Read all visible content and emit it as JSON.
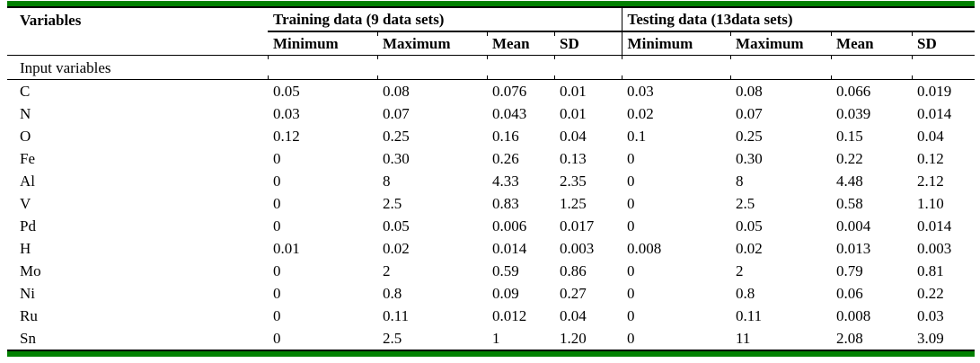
{
  "page": {
    "accent_green": "#008000",
    "rule_black": "#000000",
    "background": "#ffffff"
  },
  "table": {
    "header": {
      "variables": "Variables",
      "training": "Training data (9 data sets)",
      "testing": "Testing data (13data sets)",
      "sub": [
        "Minimum",
        "Maximum",
        "Mean",
        "SD",
        "Minimum",
        "Maximum",
        "Mean",
        "SD"
      ]
    },
    "section_label": "Input variables",
    "rows": [
      {
        "variable": "C",
        "training": [
          "0.05",
          "0.08",
          "0.076",
          "0.01"
        ],
        "testing": [
          "0.03",
          "0.08",
          "0.066",
          "0.019"
        ]
      },
      {
        "variable": "N",
        "training": [
          "0.03",
          "0.07",
          "0.043",
          "0.01"
        ],
        "testing": [
          "0.02",
          "0.07",
          "0.039",
          "0.014"
        ]
      },
      {
        "variable": "O",
        "training": [
          "0.12",
          "0.25",
          "0.16",
          "0.04"
        ],
        "testing": [
          "0.1",
          "0.25",
          "0.15",
          "0.04"
        ]
      },
      {
        "variable": "Fe",
        "training": [
          "0",
          "0.30",
          "0.26",
          "0.13"
        ],
        "testing": [
          "0",
          "0.30",
          "0.22",
          "0.12"
        ]
      },
      {
        "variable": "Al",
        "training": [
          "0",
          "8",
          "4.33",
          "2.35"
        ],
        "testing": [
          "0",
          "8",
          "4.48",
          "2.12"
        ]
      },
      {
        "variable": "V",
        "training": [
          "0",
          "2.5",
          "0.83",
          "1.25"
        ],
        "testing": [
          "0",
          "2.5",
          "0.58",
          "1.10"
        ]
      },
      {
        "variable": "Pd",
        "training": [
          "0",
          "0.05",
          "0.006",
          "0.017"
        ],
        "testing": [
          "0",
          "0.05",
          "0.004",
          "0.014"
        ]
      },
      {
        "variable": "H",
        "training": [
          "0.01",
          "0.02",
          "0.014",
          "0.003"
        ],
        "testing": [
          "0.008",
          "0.02",
          "0.013",
          "0.003"
        ]
      },
      {
        "variable": "Mo",
        "training": [
          "0",
          "2",
          "0.59",
          "0.86"
        ],
        "testing": [
          "0",
          "2",
          "0.79",
          "0.81"
        ]
      },
      {
        "variable": "Ni",
        "training": [
          "0",
          "0.8",
          "0.09",
          "0.27"
        ],
        "testing": [
          "0",
          "0.8",
          "0.06",
          "0.22"
        ]
      },
      {
        "variable": "Ru",
        "training": [
          "0",
          "0.11",
          "0.012",
          "0.04"
        ],
        "testing": [
          "0",
          "0.11",
          "0.008",
          "0.03"
        ]
      },
      {
        "variable": "Sn",
        "training": [
          "0",
          "2.5",
          "1",
          "1.20"
        ],
        "testing": [
          "0",
          "11",
          "2.08",
          "3.09"
        ]
      }
    ]
  }
}
